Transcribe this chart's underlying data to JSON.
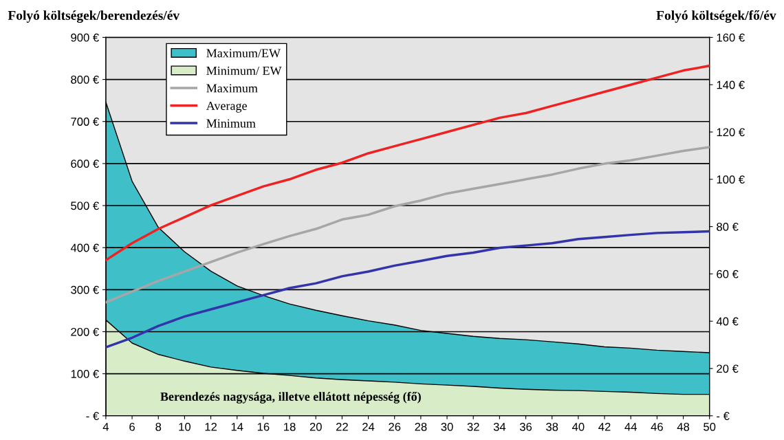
{
  "chart_data": {
    "type": "area",
    "ylabel": "Folyó költségek/berendezés/év",
    "y2label": "Folyó költségek/fő/év",
    "xlabel": "Berendezés nagysága, illetve ellátott népesség (fő)",
    "x": [
      4,
      6,
      8,
      10,
      12,
      14,
      16,
      18,
      20,
      22,
      24,
      26,
      28,
      30,
      32,
      34,
      36,
      38,
      40,
      42,
      44,
      46,
      48,
      50
    ],
    "series": [
      {
        "name": "Maximum/EW",
        "color": "#3fbfc8",
        "values": [
          746,
          558,
          448,
          390,
          344,
          309,
          286,
          266,
          251,
          238,
          226,
          216,
          203,
          196,
          189,
          184,
          181,
          176,
          171,
          164,
          161,
          156,
          153,
          150
        ]
      },
      {
        "name": "Minimum/ EW",
        "color": "#d8ecc8",
        "values": [
          228,
          173,
          146,
          130,
          116,
          108,
          101,
          96,
          90,
          86,
          83,
          80,
          76,
          73,
          70,
          66,
          63,
          61,
          60,
          58,
          56,
          53,
          51,
          51
        ]
      },
      {
        "name": "Maximum",
        "type": "line",
        "axis": "y2",
        "color": "#a6a6a6",
        "values": [
          48,
          52.5,
          57,
          61,
          65,
          69,
          72.6,
          76,
          79,
          83,
          85,
          88.6,
          91,
          94,
          96,
          98,
          100,
          102,
          104.5,
          106.6,
          108,
          110,
          112,
          113.6
        ]
      },
      {
        "name": "Average",
        "type": "line",
        "axis": "y2",
        "color": "#ee2222",
        "values": [
          65.8,
          73,
          79,
          84,
          89,
          93,
          97,
          100,
          104,
          107,
          111,
          114,
          117,
          120,
          123,
          126,
          128,
          131,
          134,
          137,
          140,
          143,
          146,
          148
        ]
      },
      {
        "name": "Minimum",
        "type": "line",
        "axis": "y2",
        "color": "#3333aa",
        "values": [
          29,
          33,
          38,
          42,
          45,
          48,
          51,
          54,
          56,
          59,
          61,
          63.5,
          65.5,
          67.6,
          69,
          71,
          72,
          73,
          74.7,
          75.6,
          76.5,
          77.3,
          77.6,
          78
        ]
      }
    ],
    "xlim": [
      4,
      50
    ],
    "xticks": [
      4,
      6,
      8,
      10,
      12,
      14,
      16,
      18,
      20,
      22,
      24,
      26,
      28,
      30,
      32,
      34,
      36,
      38,
      40,
      42,
      44,
      46,
      48,
      50
    ],
    "ylim": [
      0,
      900
    ],
    "yticks": [
      {
        "value": 0,
        "label": "- €"
      },
      {
        "value": 100,
        "label": "100 €"
      },
      {
        "value": 200,
        "label": "200 €"
      },
      {
        "value": 300,
        "label": "300 €"
      },
      {
        "value": 400,
        "label": "400 €"
      },
      {
        "value": 500,
        "label": "500 €"
      },
      {
        "value": 600,
        "label": "600 €"
      },
      {
        "value": 700,
        "label": "700 €"
      },
      {
        "value": 800,
        "label": "800 €"
      },
      {
        "value": 900,
        "label": "900 €"
      }
    ],
    "y2lim": [
      0,
      160
    ],
    "y2ticks": [
      {
        "value": 0,
        "label": "- €"
      },
      {
        "value": 20,
        "label": "20 €"
      },
      {
        "value": 40,
        "label": "40 €"
      },
      {
        "value": 60,
        "label": "60 €"
      },
      {
        "value": 80,
        "label": "80 €"
      },
      {
        "value": 100,
        "label": "100 €"
      },
      {
        "value": 120,
        "label": "120 €"
      },
      {
        "value": 140,
        "label": "140 €"
      },
      {
        "value": 160,
        "label": "160 €"
      }
    ],
    "grid": "y",
    "legend": "top left"
  }
}
